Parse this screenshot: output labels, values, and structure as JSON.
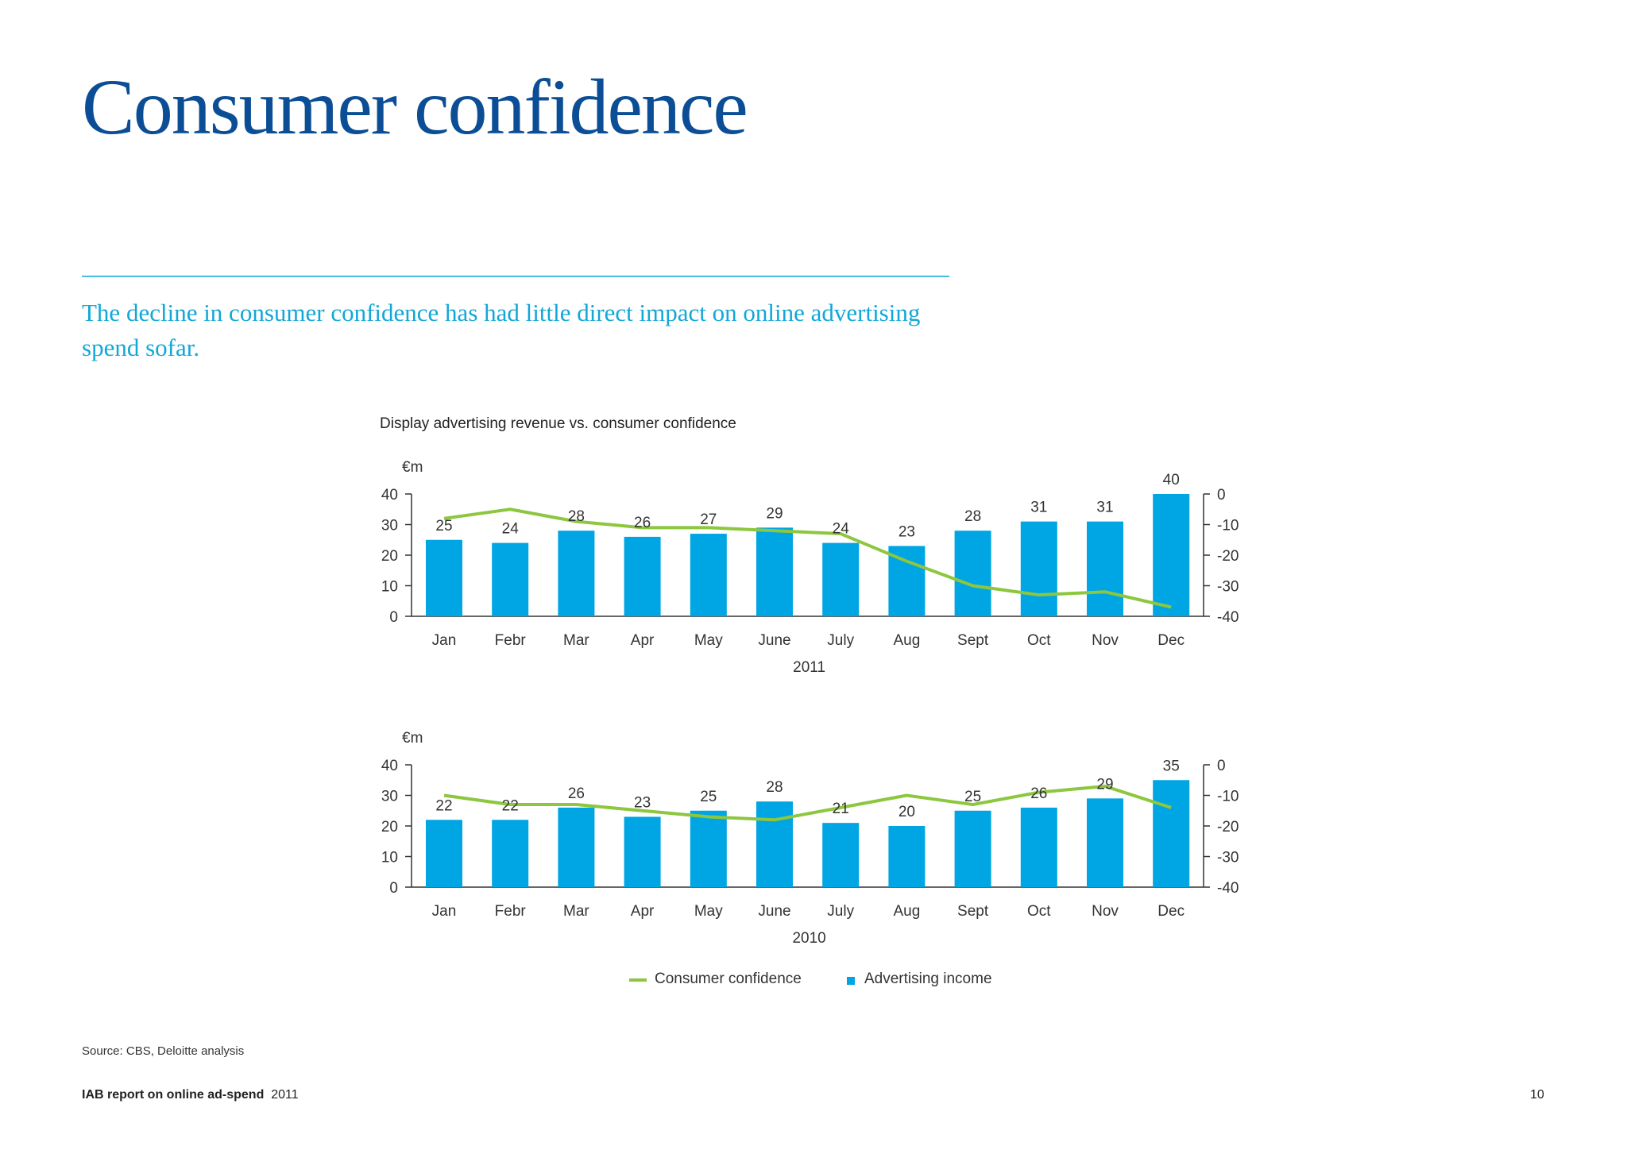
{
  "header": {
    "title": "Consumer confidence",
    "subtitle": "The decline in consumer confidence has had little direct impact on online advertising spend sofar."
  },
  "chart_title": "Display advertising revenue vs. consumer confidence",
  "legend": {
    "line": "Consumer confidence",
    "bar": "Advertising income"
  },
  "colors": {
    "bar": "#00a5e3",
    "line": "#8dc63f",
    "title": "#0b4e96",
    "subtitle": "#11a7d8"
  },
  "chart_data": [
    {
      "type": "bar",
      "year": "2011",
      "ylabel": "€m",
      "categories": [
        "Jan",
        "Febr",
        "Mar",
        "Apr",
        "May",
        "June",
        "July",
        "Aug",
        "Sept",
        "Oct",
        "Nov",
        "Dec"
      ],
      "ylim": [
        0,
        40
      ],
      "y_ticks": [
        0,
        10,
        20,
        30,
        40
      ],
      "y2lim": [
        -40,
        0
      ],
      "y2_ticks": [
        -40,
        -30,
        -20,
        -10,
        0
      ],
      "series": [
        {
          "name": "Advertising income",
          "axis": "left",
          "values": [
            25,
            24,
            28,
            26,
            27,
            29,
            24,
            23,
            28,
            31,
            31,
            40
          ]
        },
        {
          "name": "Consumer confidence",
          "axis": "right",
          "type": "line",
          "values": [
            -8,
            -5,
            -9,
            -11,
            -11,
            -12,
            -13,
            -22,
            -30,
            -33,
            -32,
            -37
          ]
        }
      ]
    },
    {
      "type": "bar",
      "year": "2010",
      "ylabel": "€m",
      "categories": [
        "Jan",
        "Febr",
        "Mar",
        "Apr",
        "May",
        "June",
        "July",
        "Aug",
        "Sept",
        "Oct",
        "Nov",
        "Dec"
      ],
      "ylim": [
        0,
        40
      ],
      "y_ticks": [
        0,
        10,
        20,
        30,
        40
      ],
      "y2lim": [
        -40,
        0
      ],
      "y2_ticks": [
        -40,
        -30,
        -20,
        -10,
        0
      ],
      "series": [
        {
          "name": "Advertising income",
          "axis": "left",
          "values": [
            22,
            22,
            26,
            23,
            25,
            28,
            21,
            20,
            25,
            26,
            29,
            35
          ]
        },
        {
          "name": "Consumer confidence",
          "axis": "right",
          "type": "line",
          "values": [
            -10,
            -13,
            -13,
            -15,
            -17,
            -18,
            -14,
            -10,
            -13,
            -9,
            -7,
            -14
          ]
        }
      ]
    }
  ],
  "source": "Source: CBS, Deloitte analysis",
  "footer": {
    "report": "IAB report on online ad-spend",
    "year": "2011",
    "page": "10"
  }
}
